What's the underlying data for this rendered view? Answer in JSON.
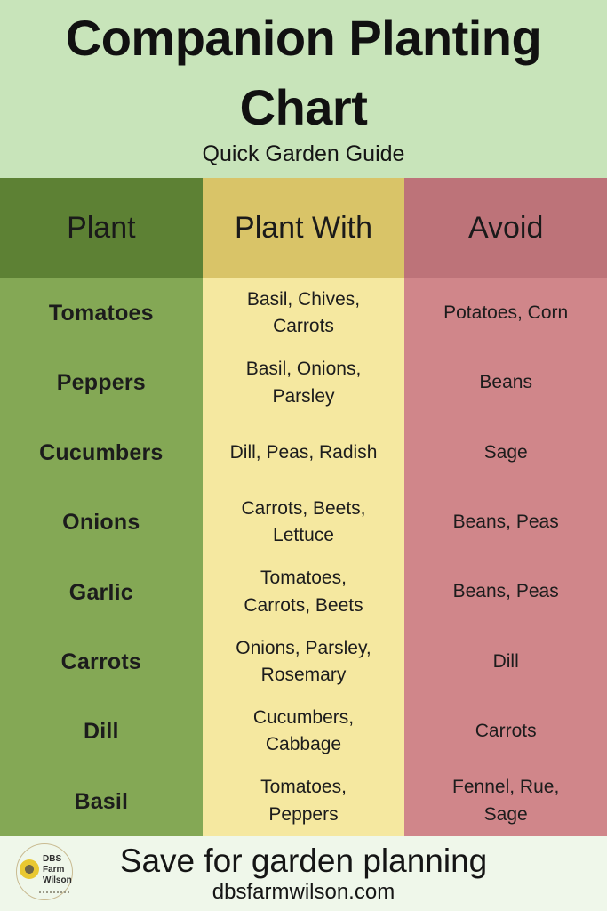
{
  "poster": {
    "title": "Companion Planting Chart",
    "subtitle": "Quick Garden Guide"
  },
  "table": {
    "headers": {
      "plant": "Plant",
      "plant_with": "Plant With",
      "avoid": "Avoid"
    },
    "rows": [
      {
        "plant": "Tomatoes",
        "plant_with": "Basil, Chives,\nCarrots",
        "avoid": "Potatoes, Corn"
      },
      {
        "plant": "Peppers",
        "plant_with": "Basil, Onions,\nParsley",
        "avoid": "Beans"
      },
      {
        "plant": "Cucumbers",
        "plant_with": "Dill, Peas, Radish",
        "avoid": "Sage"
      },
      {
        "plant": "Onions",
        "plant_with": "Carrots, Beets,\nLettuce",
        "avoid": "Beans, Peas"
      },
      {
        "plant": "Garlic",
        "plant_with": "Tomatoes,\nCarrots, Beets",
        "avoid": "Beans, Peas"
      },
      {
        "plant": "Carrots",
        "plant_with": "Onions, Parsley,\nRosemary",
        "avoid": "Dill"
      },
      {
        "plant": "Dill",
        "plant_with": "Cucumbers,\nCabbage",
        "avoid": "Carrots"
      },
      {
        "plant": "Basil",
        "plant_with": "Tomatoes,\nPeppers",
        "avoid": "Fennel, Rue,\nSage"
      }
    ]
  },
  "footer": {
    "cta": "Save for garden planning",
    "website": "dbsfarmwilson.com",
    "logo": {
      "line1": "DBS",
      "line2": "Farm",
      "line3": "Wilson"
    }
  },
  "colors": {
    "page_bg": "#c8e4ba",
    "header_green": "#5d8134",
    "header_yellow": "#d9c468",
    "header_rose": "#bd7379",
    "body_green": "#84a855",
    "body_yellow": "#f5e8a0",
    "body_rose": "#d0868a",
    "footer_bg": "#eff7ea",
    "text": "#151515"
  },
  "chart_data": {
    "type": "table",
    "title": "Companion Planting Chart",
    "subtitle": "Quick Garden Guide",
    "columns": [
      "Plant",
      "Plant With",
      "Avoid"
    ],
    "rows": [
      [
        "Tomatoes",
        "Basil, Chives, Carrots",
        "Potatoes, Corn"
      ],
      [
        "Peppers",
        "Basil, Onions, Parsley",
        "Beans"
      ],
      [
        "Cucumbers",
        "Dill, Peas, Radish",
        "Sage"
      ],
      [
        "Onions",
        "Carrots, Beets, Lettuce",
        "Beans, Peas"
      ],
      [
        "Garlic",
        "Tomatoes, Carrots, Beets",
        "Beans, Peas"
      ],
      [
        "Carrots",
        "Onions, Parsley, Rosemary",
        "Dill"
      ],
      [
        "Dill",
        "Cucumbers, Cabbage",
        "Carrots"
      ],
      [
        "Basil",
        "Tomatoes, Peppers",
        "Fennel, Rue, Sage"
      ]
    ],
    "legend_position": "none",
    "grid": false
  }
}
